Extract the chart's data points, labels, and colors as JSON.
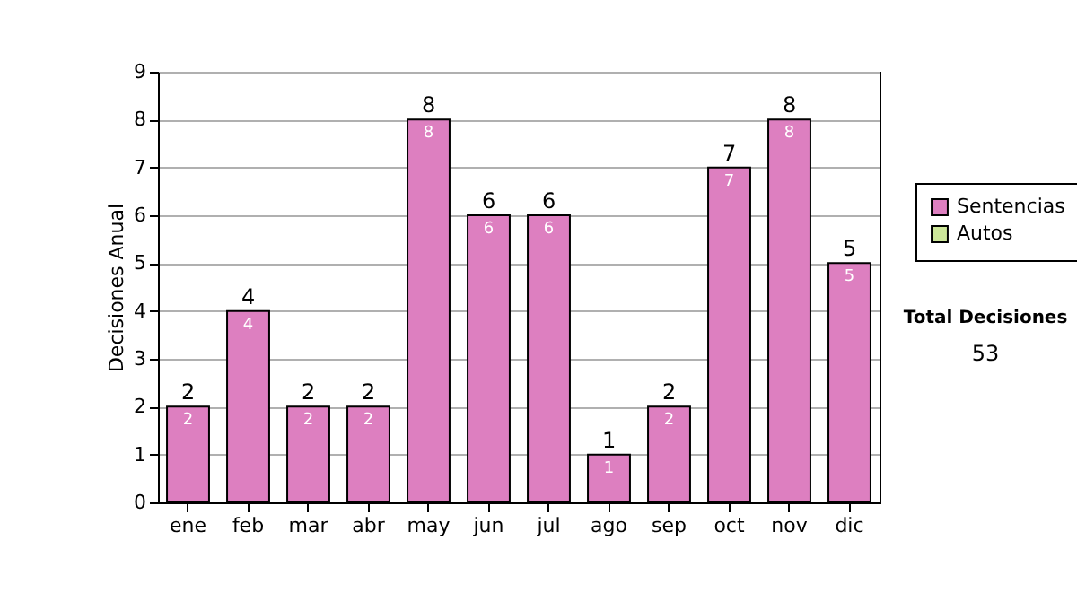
{
  "chart_data": {
    "type": "bar",
    "ylabel": "Decisiones Anual",
    "categories": [
      "ene",
      "feb",
      "mar",
      "abr",
      "may",
      "jun",
      "jul",
      "ago",
      "sep",
      "oct",
      "nov",
      "dic"
    ],
    "stacked": true,
    "series": [
      {
        "name": "Sentencias",
        "color": "#dd7fc0",
        "values": [
          2,
          4,
          2,
          2,
          8,
          6,
          6,
          1,
          2,
          7,
          8,
          5
        ],
        "value_labels": [
          "2",
          "4",
          "2",
          "2",
          "8",
          "6",
          "6",
          "1",
          "2",
          "7",
          "8",
          "5"
        ]
      },
      {
        "name": "Autos",
        "color": "#cce699",
        "values": [
          null,
          null,
          null,
          null,
          null,
          null,
          null,
          null,
          null,
          null,
          null,
          null
        ]
      }
    ],
    "totals": [
      "2",
      "4",
      "2",
      "2",
      "8",
      "6",
      "6",
      "1",
      "2",
      "7",
      "8",
      "5"
    ],
    "ylim": [
      0,
      9
    ],
    "yticks": [
      0,
      1,
      2,
      3,
      4,
      5,
      6,
      7,
      8,
      9
    ],
    "grid": "y",
    "legend": "right",
    "annotations": [
      "Total Decisiones",
      "53"
    ]
  }
}
